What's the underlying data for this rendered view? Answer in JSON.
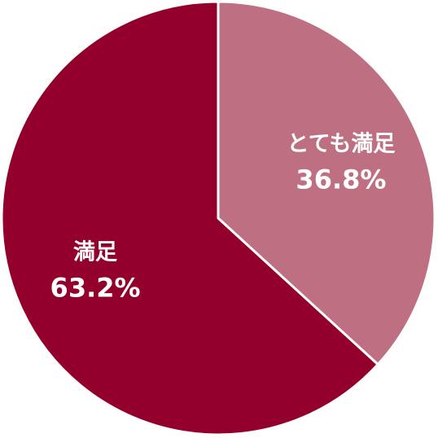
{
  "chart_data": {
    "type": "pie",
    "start": "top",
    "direction": "clockwise",
    "legend": "none",
    "slices": [
      {
        "label": "とても満足",
        "value": 36.8,
        "value_label": "36.8%",
        "color": "#BE7082"
      },
      {
        "label": "満足",
        "value": 63.2,
        "value_label": "63.2%",
        "color": "#92002B"
      }
    ],
    "separator_color": "#ffffff"
  }
}
